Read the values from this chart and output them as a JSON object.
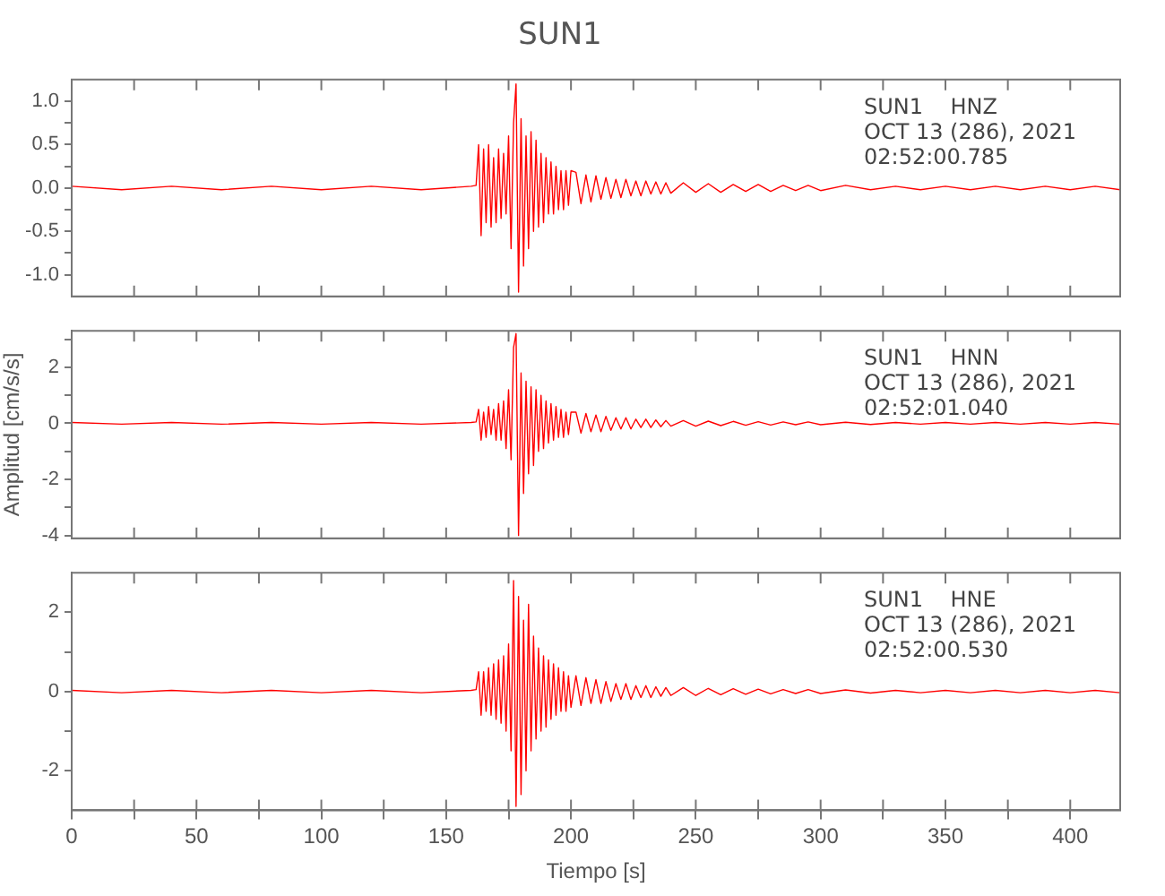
{
  "chart_data": [
    {
      "type": "line",
      "title": "SUN1",
      "annotations": [
        "SUN1    HNZ",
        "OCT 13 (286), 2021",
        "02:52:00.785"
      ],
      "tick_labels": "y",
      "grid": false,
      "x": [
        0,
        20,
        40,
        60,
        80,
        100,
        120,
        140,
        160,
        162,
        163,
        164,
        165,
        166,
        167,
        168,
        169,
        170,
        171,
        172,
        173,
        174,
        175,
        176,
        177,
        178,
        179,
        180,
        181,
        182,
        183,
        184,
        185,
        186,
        187,
        188,
        189,
        190,
        191,
        192,
        193,
        194,
        195,
        196,
        197,
        198,
        199,
        200,
        202,
        204,
        206,
        208,
        210,
        212,
        214,
        216,
        218,
        220,
        222,
        224,
        226,
        228,
        230,
        232,
        234,
        236,
        238,
        240,
        245,
        250,
        255,
        260,
        265,
        270,
        275,
        280,
        285,
        290,
        295,
        300,
        310,
        320,
        330,
        340,
        350,
        360,
        370,
        380,
        390,
        400,
        410,
        420
      ],
      "series": [
        {
          "color": "#ff0000",
          "values": [
            0.02,
            -0.02,
            0.02,
            -0.02,
            0.02,
            -0.02,
            0.02,
            -0.02,
            0.02,
            0.03,
            0.5,
            -0.55,
            0.45,
            -0.4,
            0.5,
            -0.45,
            0.35,
            -0.4,
            0.45,
            -0.35,
            0.4,
            -0.3,
            0.6,
            -0.7,
            0.75,
            1.2,
            -1.2,
            0.8,
            -0.9,
            0.6,
            -0.7,
            0.65,
            -0.5,
            0.55,
            -0.45,
            0.4,
            -0.4,
            0.35,
            -0.3,
            0.3,
            -0.3,
            0.25,
            -0.25,
            0.2,
            -0.25,
            0.2,
            -0.2,
            0.2,
            0.18,
            -0.18,
            0.15,
            -0.16,
            0.14,
            -0.13,
            0.12,
            -0.12,
            0.1,
            -0.11,
            0.1,
            -0.09,
            0.08,
            -0.09,
            0.08,
            -0.07,
            0.07,
            -0.07,
            0.06,
            -0.06,
            0.06,
            -0.05,
            0.05,
            -0.05,
            0.04,
            -0.04,
            0.04,
            -0.04,
            0.03,
            -0.03,
            0.03,
            -0.03,
            0.03,
            -0.02,
            0.02,
            -0.02,
            0.02,
            -0.02,
            0.02,
            -0.02,
            0.02,
            -0.02,
            0.02,
            -0.02
          ]
        }
      ],
      "xlim": [
        0,
        420
      ],
      "xticks": [
        0,
        {
          "value": 25,
          "label": null
        },
        50,
        {
          "value": 75,
          "label": null
        },
        100,
        {
          "value": 125,
          "label": null
        },
        150,
        {
          "value": 175,
          "label": null
        },
        200,
        {
          "value": 225,
          "label": null
        },
        250,
        {
          "value": 275,
          "label": null
        },
        300,
        {
          "value": 325,
          "label": null
        },
        350,
        {
          "value": 375,
          "label": null
        },
        400
      ],
      "ylim": [
        -1.25,
        1.25
      ],
      "yticks": [
        {
          "value": -1,
          "label": "-1.0"
        },
        {
          "value": -0.75,
          "label": null
        },
        {
          "value": -0.5,
          "label": "-0.5"
        },
        {
          "value": -0.25,
          "label": null
        },
        {
          "value": 0,
          "label": "0.0"
        },
        {
          "value": 0.25,
          "label": null
        },
        {
          "value": 0.5,
          "label": "0.5"
        },
        {
          "value": 0.75,
          "label": null
        },
        {
          "value": 1,
          "label": "1.0"
        }
      ]
    },
    {
      "type": "line",
      "ylabel": "Amplitud [cm/s/s]",
      "annotations": [
        "SUN1    HNN",
        "OCT 13 (286), 2021",
        "02:52:01.040"
      ],
      "tick_labels": "y",
      "grid": false,
      "x": [
        0,
        20,
        40,
        60,
        80,
        100,
        120,
        140,
        160,
        162,
        163,
        164,
        165,
        166,
        167,
        168,
        169,
        170,
        171,
        172,
        173,
        174,
        175,
        176,
        177,
        178,
        179,
        180,
        181,
        182,
        183,
        184,
        185,
        186,
        187,
        188,
        189,
        190,
        191,
        192,
        193,
        194,
        195,
        196,
        197,
        198,
        199,
        200,
        202,
        204,
        206,
        208,
        210,
        212,
        214,
        216,
        218,
        220,
        222,
        224,
        226,
        228,
        230,
        232,
        234,
        236,
        238,
        240,
        245,
        250,
        255,
        260,
        265,
        270,
        275,
        280,
        285,
        290,
        295,
        300,
        310,
        320,
        330,
        340,
        350,
        360,
        370,
        380,
        390,
        400,
        410,
        420
      ],
      "series": [
        {
          "color": "#ff0000",
          "values": [
            0.03,
            -0.03,
            0.03,
            -0.03,
            0.03,
            -0.03,
            0.03,
            -0.03,
            0.03,
            0.05,
            0.5,
            -0.6,
            0.4,
            -0.5,
            0.6,
            -0.4,
            0.5,
            -0.6,
            0.7,
            -0.6,
            0.8,
            -0.9,
            1.2,
            -1.3,
            2.7,
            3.2,
            -4.0,
            1.8,
            -2.5,
            1.5,
            -1.8,
            1.3,
            -1.5,
            1.2,
            -1.0,
            1.0,
            -0.9,
            0.8,
            -0.7,
            0.7,
            -0.6,
            0.6,
            -0.5,
            0.5,
            -0.5,
            0.4,
            -0.4,
            0.4,
            0.4,
            -0.35,
            0.35,
            -0.3,
            0.3,
            -0.3,
            0.25,
            -0.25,
            0.2,
            -0.2,
            0.2,
            -0.2,
            0.15,
            -0.15,
            0.15,
            -0.15,
            0.12,
            -0.12,
            0.1,
            -0.1,
            0.1,
            -0.1,
            0.08,
            -0.08,
            0.07,
            -0.07,
            0.06,
            -0.06,
            0.05,
            -0.05,
            0.05,
            -0.05,
            0.04,
            -0.04,
            0.03,
            -0.03,
            0.03,
            -0.03,
            0.03,
            -0.03,
            0.03,
            -0.03,
            0.03,
            -0.03
          ]
        }
      ],
      "xlim": [
        0,
        420
      ],
      "xticks": [
        0,
        {
          "value": 25,
          "label": null
        },
        50,
        {
          "value": 75,
          "label": null
        },
        100,
        {
          "value": 125,
          "label": null
        },
        150,
        {
          "value": 175,
          "label": null
        },
        200,
        {
          "value": 225,
          "label": null
        },
        250,
        {
          "value": 275,
          "label": null
        },
        300,
        {
          "value": 325,
          "label": null
        },
        350,
        {
          "value": 375,
          "label": null
        },
        400
      ],
      "ylim": [
        -4.1,
        3.3
      ],
      "yticks": [
        -4,
        {
          "value": -3,
          "label": null
        },
        -2,
        {
          "value": -1,
          "label": null
        },
        0,
        {
          "value": 1,
          "label": null
        },
        2,
        {
          "value": 3,
          "label": null
        }
      ]
    },
    {
      "type": "line",
      "xlabel": "Tiempo [s]",
      "annotations": [
        "SUN1    HNE",
        "OCT 13 (286), 2021",
        "02:52:00.530"
      ],
      "grid": false,
      "x": [
        0,
        20,
        40,
        60,
        80,
        100,
        120,
        140,
        160,
        162,
        163,
        164,
        165,
        166,
        167,
        168,
        169,
        170,
        171,
        172,
        173,
        174,
        175,
        176,
        177,
        178,
        179,
        180,
        181,
        182,
        183,
        184,
        185,
        186,
        187,
        188,
        189,
        190,
        191,
        192,
        193,
        194,
        195,
        196,
        197,
        198,
        199,
        200,
        202,
        204,
        206,
        208,
        210,
        212,
        214,
        216,
        218,
        220,
        222,
        224,
        226,
        228,
        230,
        232,
        234,
        236,
        238,
        240,
        245,
        250,
        255,
        260,
        265,
        270,
        275,
        280,
        285,
        290,
        295,
        300,
        310,
        320,
        330,
        340,
        350,
        360,
        370,
        380,
        390,
        400,
        410,
        420
      ],
      "series": [
        {
          "color": "#ff0000",
          "values": [
            0.03,
            -0.03,
            0.03,
            -0.03,
            0.03,
            -0.03,
            0.03,
            -0.03,
            0.03,
            0.05,
            0.5,
            -0.6,
            0.5,
            -0.5,
            0.6,
            -0.6,
            0.7,
            -0.7,
            0.8,
            -0.8,
            0.9,
            -1.0,
            1.2,
            -1.5,
            2.8,
            -2.9,
            2.4,
            -2.6,
            1.8,
            -2.0,
            2.2,
            -1.5,
            1.4,
            -1.2,
            1.1,
            -1.0,
            0.9,
            -0.9,
            0.8,
            -0.7,
            0.7,
            -0.6,
            0.6,
            -0.5,
            0.5,
            -0.5,
            0.4,
            -0.4,
            0.4,
            -0.35,
            0.35,
            -0.3,
            0.3,
            -0.3,
            0.25,
            -0.25,
            0.2,
            -0.2,
            0.2,
            -0.2,
            0.15,
            -0.15,
            0.15,
            -0.15,
            0.12,
            -0.12,
            0.1,
            -0.1,
            0.1,
            -0.1,
            0.08,
            -0.08,
            0.07,
            -0.07,
            0.06,
            -0.06,
            0.05,
            -0.05,
            0.05,
            -0.05,
            0.04,
            -0.04,
            0.03,
            -0.03,
            0.03,
            -0.03,
            0.03,
            -0.03,
            0.03,
            -0.03,
            0.03,
            -0.03
          ]
        }
      ],
      "xlim": [
        0,
        420
      ],
      "xticks": [
        0,
        {
          "value": 25,
          "label": null
        },
        50,
        {
          "value": 75,
          "label": null
        },
        100,
        {
          "value": 125,
          "label": null
        },
        150,
        {
          "value": 175,
          "label": null
        },
        200,
        {
          "value": 225,
          "label": null
        },
        250,
        {
          "value": 275,
          "label": null
        },
        300,
        {
          "value": 325,
          "label": null
        },
        350,
        {
          "value": 375,
          "label": null
        },
        400
      ],
      "ylim": [
        -3,
        3
      ],
      "yticks": [
        -2,
        {
          "value": -1,
          "label": null
        },
        0,
        {
          "value": 1,
          "label": null
        },
        2
      ]
    }
  ]
}
